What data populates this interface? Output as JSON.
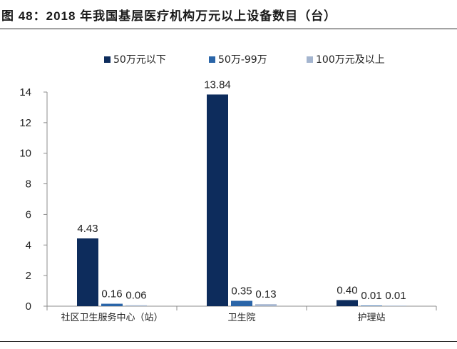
{
  "figure": {
    "title": "图 48：2018 年我国基层医疗机构万元以上设备数目（台）"
  },
  "chart_data": {
    "type": "bar",
    "title": "图 48：2018 年我国基层医疗机构万元以上设备数目（台）",
    "xlabel": "",
    "ylabel": "",
    "categories": [
      "社区卫生服务中心（站）",
      "卫生院",
      "护理站"
    ],
    "series": [
      {
        "name": "50万元以下",
        "color": "#0d2c5c",
        "values": [
          4.43,
          13.84,
          0.4
        ],
        "labels": [
          "4.43",
          "13.84",
          "0.40"
        ]
      },
      {
        "name": "50万-99万",
        "color": "#2a65a8",
        "values": [
          0.16,
          0.35,
          0.01
        ],
        "labels": [
          "0.16",
          "0.35",
          "0.01"
        ]
      },
      {
        "name": "100万元及以上",
        "color": "#a4b5cf",
        "values": [
          0.06,
          0.13,
          0.01
        ],
        "labels": [
          "0.06",
          "0.13",
          "0.01"
        ]
      }
    ],
    "ylim": [
      0,
      14
    ],
    "yticks": [
      0,
      2,
      4,
      6,
      8,
      10,
      12,
      14
    ],
    "grid": false,
    "legend_position": "top"
  }
}
